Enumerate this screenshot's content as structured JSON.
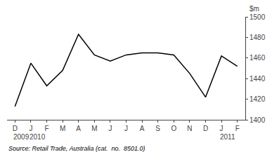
{
  "chart_data": {
    "type": "line",
    "categories": [
      "D",
      "J",
      "F",
      "M",
      "A",
      "M",
      "J",
      "J",
      "A",
      "S",
      "O",
      "N",
      "D",
      "J",
      "F"
    ],
    "values": [
      1413,
      1455,
      1433,
      1448,
      1483,
      1463,
      1457,
      1463,
      1465,
      1465,
      1463,
      1445,
      1422,
      1462,
      1452
    ],
    "color": "#000000",
    "ylim": [
      1400,
      1500
    ],
    "yticks": [
      1400,
      1420,
      1440,
      1460,
      1480,
      1500
    ],
    "ylabel": "$m",
    "annotations": [
      {
        "text": "2009",
        "x": 0
      },
      {
        "text": "2010",
        "x": 1
      },
      {
        "text": "2011",
        "x": 13
      }
    ],
    "source": "Source: Retail Trade, Australia (cat.  no.  8501.0)",
    "grid": false
  }
}
